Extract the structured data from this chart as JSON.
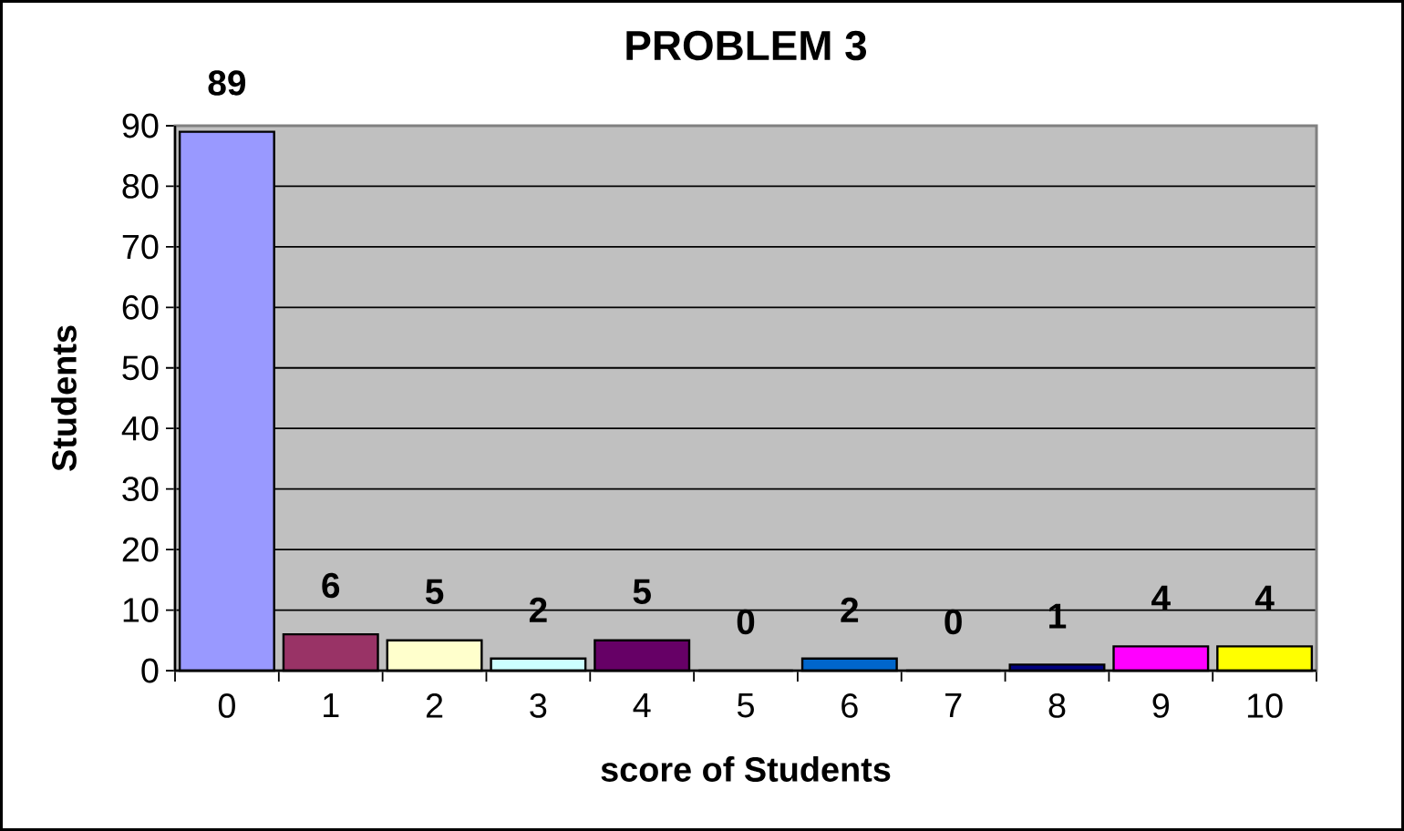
{
  "chart_data": {
    "type": "bar",
    "title": "PROBLEM 3",
    "xlabel": "score of Students",
    "ylabel": "Students",
    "categories": [
      "0",
      "1",
      "2",
      "3",
      "4",
      "5",
      "6",
      "7",
      "8",
      "9",
      "10"
    ],
    "values": [
      89,
      6,
      5,
      2,
      5,
      0,
      2,
      0,
      1,
      4,
      4
    ],
    "colors": [
      "#9999ff",
      "#993366",
      "#ffffcc",
      "#ccffff",
      "#660066",
      "#ff8080",
      "#0066cc",
      "#ccccff",
      "#000080",
      "#ff00ff",
      "#ffff00"
    ],
    "ylim": [
      0,
      90
    ],
    "yticks": [
      0,
      10,
      20,
      30,
      40,
      50,
      60,
      70,
      80,
      90
    ],
    "grid": "y",
    "data_labels": true
  }
}
